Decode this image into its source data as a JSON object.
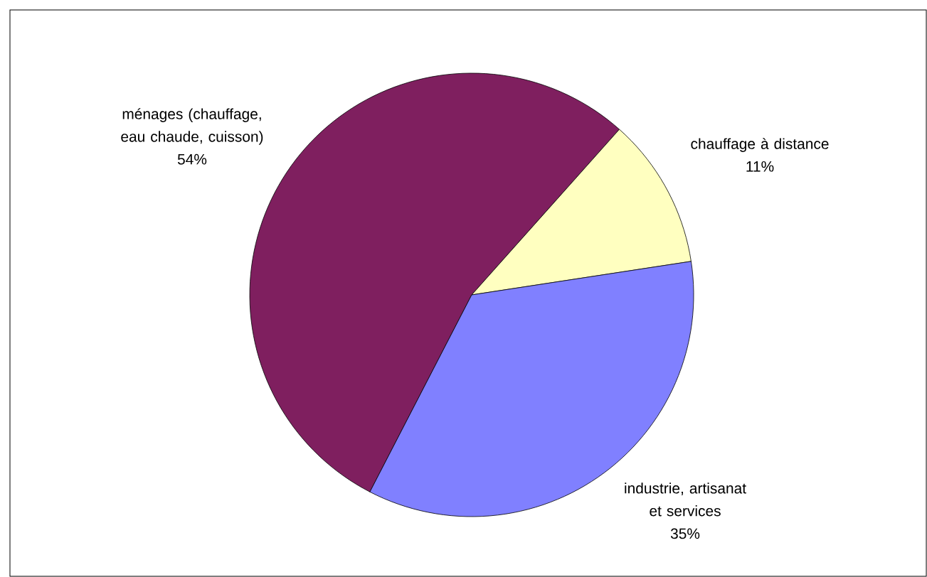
{
  "chart_data": {
    "type": "pie",
    "categories": [
      "ménages (chauffage, eau chaude, cuisson)",
      "chauffage à distance",
      "industrie, artisanat et services"
    ],
    "values": [
      54,
      11,
      35
    ],
    "value_labels": [
      "54%",
      "11%",
      "35%"
    ],
    "colors": [
      "#7f1f5f",
      "#ffffc0",
      "#8080ff"
    ]
  }
}
